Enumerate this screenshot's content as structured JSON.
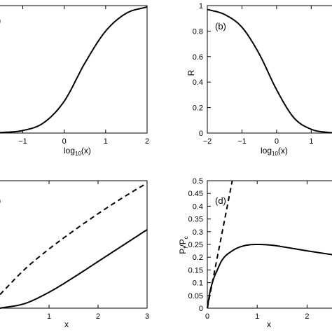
{
  "chart_data": [
    {
      "type": "line",
      "panel": "(a)",
      "xlabel": "log10(x)",
      "xlim": [
        -2,
        2
      ],
      "ylim": [
        0,
        1
      ],
      "x_ticks": [
        -1,
        0,
        1,
        2
      ],
      "y_ticks": [],
      "series": [
        {
          "style": "solid",
          "x": [
            -2,
            -1.5,
            -1,
            -0.5,
            0,
            0.5,
            1,
            1.5,
            2
          ],
          "y": [
            0,
            0.005,
            0.02,
            0.08,
            0.25,
            0.55,
            0.8,
            0.94,
            0.99
          ]
        }
      ]
    },
    {
      "type": "line",
      "panel": "(b)",
      "xlabel": "log10(x)",
      "ylabel": "R",
      "xlim": [
        -2,
        2
      ],
      "ylim": [
        0,
        1
      ],
      "x_ticks": [
        -2,
        -1,
        0,
        1
      ],
      "y_ticks": [
        0,
        0.2,
        0.4,
        0.6,
        0.8,
        1
      ],
      "series": [
        {
          "style": "solid",
          "x": [
            -2,
            -1.5,
            -1,
            -0.5,
            0,
            0.5,
            1,
            1.5,
            2
          ],
          "y": [
            0.97,
            0.93,
            0.83,
            0.62,
            0.34,
            0.12,
            0.03,
            0.005,
            0
          ]
        }
      ]
    },
    {
      "type": "line",
      "panel": "(c)",
      "xlabel": "x",
      "xlim": [
        0,
        3
      ],
      "x_ticks": [
        1,
        2,
        3
      ],
      "y_ticks": [],
      "series": [
        {
          "style": "dashed",
          "x": [
            0,
            0.5,
            1,
            1.5,
            2,
            2.5,
            3
          ],
          "y": [
            0.12,
            0.34,
            0.52,
            0.68,
            0.83,
            0.97,
            1.1
          ]
        },
        {
          "style": "solid",
          "x": [
            0,
            0.5,
            1,
            1.5,
            2,
            2.5,
            3
          ],
          "y": [
            0,
            0.04,
            0.14,
            0.27,
            0.41,
            0.55,
            0.69
          ]
        }
      ]
    },
    {
      "type": "line",
      "panel": "(d)",
      "xlabel": "x",
      "ylabel": "Pf/Pc",
      "xlim": [
        0,
        2.5
      ],
      "ylim": [
        0,
        0.5
      ],
      "x_ticks": [
        0,
        1,
        2
      ],
      "y_ticks": [
        0,
        0.05,
        0.1,
        0.15,
        0.2,
        0.25,
        0.3,
        0.35,
        0.4,
        0.45,
        0.5
      ],
      "series": [
        {
          "style": "dashed",
          "x": [
            0,
            0.1,
            0.2,
            0.3,
            0.4,
            0.5
          ],
          "y": [
            0,
            0.1,
            0.2,
            0.3,
            0.4,
            0.5
          ]
        },
        {
          "style": "solid",
          "x": [
            0,
            0.05,
            0.1,
            0.2,
            0.3,
            0.5,
            0.7,
            1,
            1.3,
            1.6,
            2,
            2.5
          ],
          "y": [
            0,
            0.06,
            0.1,
            0.15,
            0.19,
            0.225,
            0.243,
            0.25,
            0.247,
            0.238,
            0.225,
            0.21
          ]
        }
      ]
    }
  ]
}
